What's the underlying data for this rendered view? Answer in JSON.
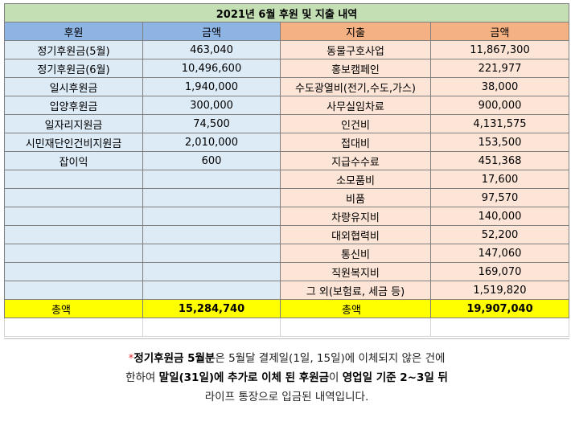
{
  "title": "2021년 6월 후원 및 지출 내역",
  "headers": {
    "donation": "후원",
    "donation_amount": "금액",
    "expense": "지출",
    "expense_amount": "금액"
  },
  "rows": [
    {
      "donation": "정기후원금(5월)",
      "donation_amount": "463,040",
      "expense": "동물구호사업",
      "expense_amount": "11,867,300"
    },
    {
      "donation": "정기후원금(6월)",
      "donation_amount": "10,496,600",
      "expense": "홍보캠페인",
      "expense_amount": "221,977"
    },
    {
      "donation": "일시후원금",
      "donation_amount": "1,940,000",
      "expense": "수도광열비(전기,수도,가스)",
      "expense_amount": "38,000"
    },
    {
      "donation": "입양후원금",
      "donation_amount": "300,000",
      "expense": "사무실임차료",
      "expense_amount": "900,000"
    },
    {
      "donation": "일자리지원금",
      "donation_amount": "74,500",
      "expense": "인건비",
      "expense_amount": "4,131,575"
    },
    {
      "donation": "시민재단인건비지원금",
      "donation_amount": "2,010,000",
      "expense": "접대비",
      "expense_amount": "153,500"
    },
    {
      "donation": "잡이익",
      "donation_amount": "600",
      "expense": "지급수수료",
      "expense_amount": "451,368"
    },
    {
      "donation": "",
      "donation_amount": "",
      "expense": "소모품비",
      "expense_amount": "17,600"
    },
    {
      "donation": "",
      "donation_amount": "",
      "expense": "비품",
      "expense_amount": "97,570"
    },
    {
      "donation": "",
      "donation_amount": "",
      "expense": "차량유지비",
      "expense_amount": "140,000"
    },
    {
      "donation": "",
      "donation_amount": "",
      "expense": "대외협력비",
      "expense_amount": "52,200"
    },
    {
      "donation": "",
      "donation_amount": "",
      "expense": "통신비",
      "expense_amount": "147,060"
    },
    {
      "donation": "",
      "donation_amount": "",
      "expense": "직원복지비",
      "expense_amount": "169,070"
    },
    {
      "donation": "",
      "donation_amount": "",
      "expense": "그 외(보험료, 세금 등)",
      "expense_amount": "1,519,820"
    }
  ],
  "totals": {
    "donation_label": "총액",
    "donation_total": "15,284,740",
    "expense_label": "총액",
    "expense_total": "19,907,040"
  },
  "note": {
    "asterisk": "*",
    "l1_bold": "정기후원금 5월분",
    "l1_rest": "은 5월달 결제일(1일, 15일)에 이체되지 않은 건에",
    "l2_a": "한하여 ",
    "l2_bold1": "말일(31일)에 추가로 이체 된 후원금",
    "l2_b": "이 ",
    "l2_bold2": "영업일 기준 2~3일 뒤",
    "l3": "라이프 통장으로 입금된 내역입니다."
  },
  "colors": {
    "title_bg": "#c5dfb4",
    "donation_header_bg": "#8eb4e3",
    "expense_header_bg": "#f4b183",
    "donation_cell_bg": "#ddebf7",
    "expense_cell_bg": "#fce4d6",
    "total_bg": "#ffff00",
    "asterisk": "#e3342f"
  }
}
